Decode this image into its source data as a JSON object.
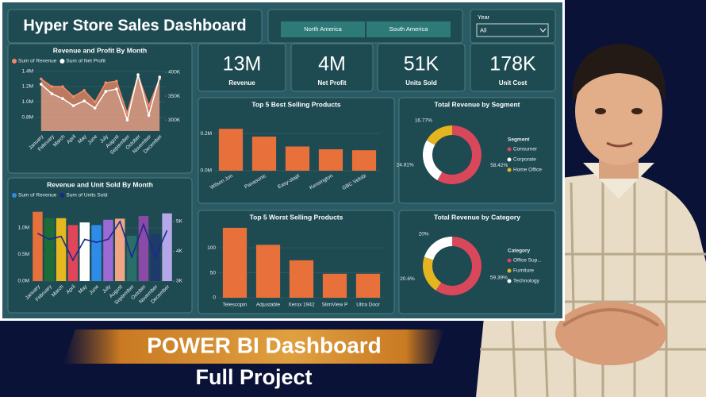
{
  "header": {
    "title": "Hyper Store Sales Dashboard"
  },
  "filters": {
    "regions": [
      "North America",
      "South America"
    ],
    "year_label": "Year",
    "year_value": "All"
  },
  "kpis": [
    {
      "value": "13M",
      "label": "Revenue"
    },
    {
      "value": "4M",
      "label": "Net Profit"
    },
    {
      "value": "51K",
      "label": "Units Sold"
    },
    {
      "value": "178K",
      "label": "Unit Cost"
    }
  ],
  "chart_data": [
    {
      "type": "area",
      "title": "Revenue and Profit By Month",
      "categories": [
        "January",
        "February",
        "March",
        "April",
        "May",
        "June",
        "July",
        "August",
        "September",
        "October",
        "November",
        "December"
      ],
      "series": [
        {
          "name": "Sum of Revenue",
          "color": "#f08a66",
          "values": [
            1300000,
            1200000,
            1200000,
            1070000,
            1150000,
            1000000,
            1250000,
            1270000,
            850000,
            1350000,
            950000,
            1300000
          ]
        },
        {
          "name": "Sum of Net Profit",
          "color": "#ffffff",
          "axis": "y2",
          "values": [
            375000,
            355000,
            345000,
            330000,
            340000,
            325000,
            360000,
            365000,
            300000,
            395000,
            310000,
            390000
          ]
        }
      ],
      "ylim": [
        620000,
        1480000
      ],
      "yticks": [
        {
          "value": 800000,
          "label": "0.8M"
        },
        {
          "value": 1000000,
          "label": "1.0M"
        },
        {
          "value": 1200000,
          "label": "1.2M"
        },
        {
          "value": 1400000,
          "label": "1.4M"
        }
      ],
      "y2lim": [
        277000,
        415000
      ],
      "y2ticks": [
        {
          "value": 300000,
          "label": "300K"
        },
        {
          "value": 350000,
          "label": "350K"
        },
        {
          "value": 400000,
          "label": "400K"
        }
      ],
      "legend": "top-left"
    },
    {
      "type": "bar-line",
      "title": "Revenue and Unit Sold By Month",
      "categories": [
        "January",
        "February",
        "March",
        "April",
        "May",
        "June",
        "July",
        "August",
        "September",
        "October",
        "November",
        "December"
      ],
      "series": [
        {
          "name": "Sum of Revenue",
          "color": "#2e8be8",
          "colors": [
            "#e8703a",
            "#1c6b38",
            "#e6b820",
            "#e0455a",
            "#ffffff",
            "#2e8be8",
            "#9b6ad6",
            "#f0a585",
            "#2a6e6a",
            "#8b4aa8",
            "#1e3a6a",
            "#b4a8e8"
          ],
          "values": [
            1300000,
            1180000,
            1180000,
            1050000,
            1100000,
            1050000,
            1150000,
            1170000,
            850000,
            1220000,
            880000,
            1270000
          ]
        },
        {
          "name": "Sum of Units Sold",
          "color": "#1b2a8a",
          "axis": "y2",
          "values": [
            4600,
            4400,
            4500,
            3700,
            4400,
            4300,
            4400,
            5000,
            3800,
            4900,
            3800,
            4700
          ]
        }
      ],
      "ylim": [
        0,
        1370000
      ],
      "yticks": [
        {
          "value": 0,
          "label": "0.0M"
        },
        {
          "value": 500000,
          "label": "0.5M"
        },
        {
          "value": 1000000,
          "label": "1.0M"
        }
      ],
      "y2lim": [
        3000,
        5450
      ],
      "y2ticks": [
        {
          "value": 3000,
          "label": "3K"
        },
        {
          "value": 4000,
          "label": "4K"
        },
        {
          "value": 5000,
          "label": "5K"
        }
      ],
      "legend": "top-left"
    },
    {
      "type": "bar",
      "title": "Top 5 Best Selling Products",
      "categories": [
        "Wilson Jon",
        "Panasonic",
        "Easy-stapl",
        "Kensington",
        "GBC Velobi"
      ],
      "values": [
        225000,
        183000,
        130000,
        115000,
        110000
      ],
      "color": "#e8703a",
      "ylim": [
        0,
        277000
      ],
      "yticks": [
        {
          "value": 0,
          "label": "0.0M"
        },
        {
          "value": 200000,
          "label": "0.2M"
        }
      ]
    },
    {
      "type": "bar",
      "title": "Top 5 Worst Selling Products",
      "categories": [
        "Telescopin",
        "Adjustable",
        "Xerox 1942",
        "SlimView P",
        "Ultra Door"
      ],
      "values": [
        140,
        106,
        75,
        48,
        48
      ],
      "color": "#e8703a",
      "ylim": [
        0,
        151
      ],
      "yticks": [
        0,
        50,
        100
      ]
    },
    {
      "type": "pie",
      "title": "Total Revenue by Segment",
      "legend_title": "Segment",
      "categories": [
        "Consumer",
        "Corporate",
        "Home Office"
      ],
      "values": [
        58.42,
        24.81,
        16.77
      ],
      "value_labels": [
        "58.42%",
        "24.81%",
        "16.77%"
      ],
      "colors": [
        "#d9475a",
        "#ffffff",
        "#e5b520"
      ],
      "donut": true
    },
    {
      "type": "pie",
      "title": "Total Revenue by Category",
      "legend_title": "Category",
      "categories": [
        "Office Sup...",
        "Furniture",
        "Technology"
      ],
      "values": [
        59.39,
        20.6,
        20
      ],
      "value_labels": [
        "59.39%",
        "20.6%",
        "20%"
      ],
      "colors": [
        "#d9475a",
        "#e5b520",
        "#ffffff"
      ],
      "donut": true
    }
  ],
  "banner": {
    "title": "POWER BI Dashboard",
    "subtitle": "Full Project"
  }
}
